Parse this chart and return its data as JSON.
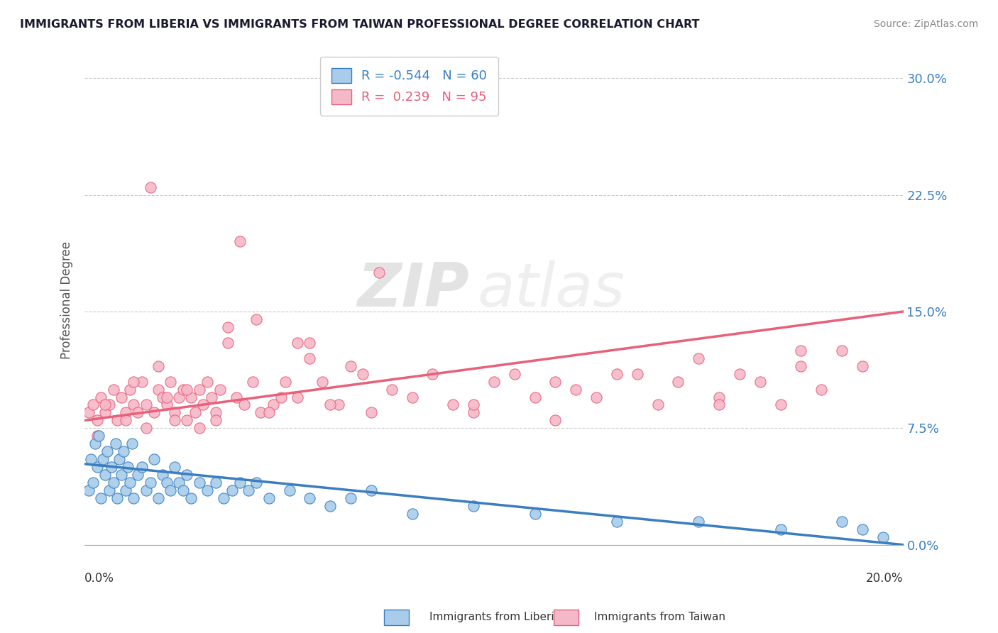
{
  "title": "IMMIGRANTS FROM LIBERIA VS IMMIGRANTS FROM TAIWAN PROFESSIONAL DEGREE CORRELATION CHART",
  "source": "Source: ZipAtlas.com",
  "ylabel": "Professional Degree",
  "yticks": [
    "0.0%",
    "7.5%",
    "15.0%",
    "22.5%",
    "30.0%"
  ],
  "ytick_vals": [
    0.0,
    7.5,
    15.0,
    22.5,
    30.0
  ],
  "xlim": [
    0.0,
    20.0
  ],
  "ylim": [
    0.0,
    31.5
  ],
  "legend_blue_r": "-0.544",
  "legend_blue_n": "60",
  "legend_pink_r": "0.239",
  "legend_pink_n": "95",
  "blue_color": "#A8CCEA",
  "pink_color": "#F5B8C8",
  "blue_line_color": "#3A7EC0",
  "pink_line_color": "#E8607A",
  "watermark_zip": "ZIP",
  "watermark_atlas": "atlas",
  "blue_line_x0": 0.0,
  "blue_line_y0": 5.2,
  "blue_line_x1": 20.0,
  "blue_line_y1": 0.0,
  "pink_line_x0": 0.0,
  "pink_line_y0": 8.0,
  "pink_line_x1": 20.0,
  "pink_line_y1": 15.0,
  "blue_scatter_x": [
    0.1,
    0.15,
    0.2,
    0.25,
    0.3,
    0.35,
    0.4,
    0.45,
    0.5,
    0.55,
    0.6,
    0.65,
    0.7,
    0.75,
    0.8,
    0.85,
    0.9,
    0.95,
    1.0,
    1.05,
    1.1,
    1.15,
    1.2,
    1.3,
    1.4,
    1.5,
    1.6,
    1.7,
    1.8,
    1.9,
    2.0,
    2.1,
    2.2,
    2.3,
    2.4,
    2.5,
    2.6,
    2.8,
    3.0,
    3.2,
    3.4,
    3.6,
    3.8,
    4.0,
    4.2,
    4.5,
    5.0,
    5.5,
    6.0,
    6.5,
    7.0,
    8.0,
    9.5,
    11.0,
    13.0,
    15.0,
    17.0,
    18.5,
    19.0,
    19.5
  ],
  "blue_scatter_y": [
    3.5,
    5.5,
    4.0,
    6.5,
    5.0,
    7.0,
    3.0,
    5.5,
    4.5,
    6.0,
    3.5,
    5.0,
    4.0,
    6.5,
    3.0,
    5.5,
    4.5,
    6.0,
    3.5,
    5.0,
    4.0,
    6.5,
    3.0,
    4.5,
    5.0,
    3.5,
    4.0,
    5.5,
    3.0,
    4.5,
    4.0,
    3.5,
    5.0,
    4.0,
    3.5,
    4.5,
    3.0,
    4.0,
    3.5,
    4.0,
    3.0,
    3.5,
    4.0,
    3.5,
    4.0,
    3.0,
    3.5,
    3.0,
    2.5,
    3.0,
    3.5,
    2.0,
    2.5,
    2.0,
    1.5,
    1.5,
    1.0,
    1.5,
    1.0,
    0.5
  ],
  "pink_scatter_x": [
    0.1,
    0.2,
    0.3,
    0.4,
    0.5,
    0.6,
    0.7,
    0.8,
    0.9,
    1.0,
    1.1,
    1.2,
    1.3,
    1.4,
    1.5,
    1.6,
    1.7,
    1.8,
    1.9,
    2.0,
    2.1,
    2.2,
    2.3,
    2.4,
    2.5,
    2.6,
    2.7,
    2.8,
    2.9,
    3.0,
    3.1,
    3.2,
    3.3,
    3.5,
    3.7,
    3.9,
    4.1,
    4.3,
    4.6,
    4.9,
    5.2,
    5.5,
    5.8,
    6.2,
    6.5,
    7.0,
    7.5,
    8.0,
    8.5,
    9.0,
    9.5,
    10.0,
    10.5,
    11.0,
    11.5,
    12.0,
    12.5,
    13.0,
    14.0,
    14.5,
    15.0,
    15.5,
    16.0,
    16.5,
    17.0,
    17.5,
    18.0,
    18.5,
    19.0,
    1.5,
    2.0,
    1.0,
    0.5,
    3.5,
    4.5,
    2.5,
    1.8,
    2.2,
    6.0,
    7.2,
    3.8,
    4.2,
    5.5,
    6.8,
    2.8,
    3.2,
    4.8,
    5.2,
    9.5,
    11.5,
    13.5,
    15.5,
    17.5,
    0.3,
    1.2
  ],
  "pink_scatter_y": [
    8.5,
    9.0,
    8.0,
    9.5,
    8.5,
    9.0,
    10.0,
    8.0,
    9.5,
    8.5,
    10.0,
    9.0,
    8.5,
    10.5,
    9.0,
    23.0,
    8.5,
    10.0,
    9.5,
    9.0,
    10.5,
    8.5,
    9.5,
    10.0,
    8.0,
    9.5,
    8.5,
    10.0,
    9.0,
    10.5,
    9.5,
    8.5,
    10.0,
    13.0,
    9.5,
    9.0,
    10.5,
    8.5,
    9.0,
    10.5,
    9.5,
    13.0,
    10.5,
    9.0,
    11.5,
    8.5,
    10.0,
    9.5,
    11.0,
    9.0,
    8.5,
    10.5,
    11.0,
    9.5,
    8.0,
    10.0,
    9.5,
    11.0,
    9.0,
    10.5,
    12.0,
    9.5,
    11.0,
    10.5,
    9.0,
    11.5,
    10.0,
    12.5,
    11.5,
    7.5,
    9.5,
    8.0,
    9.0,
    14.0,
    8.5,
    10.0,
    11.5,
    8.0,
    9.0,
    17.5,
    19.5,
    14.5,
    12.0,
    11.0,
    7.5,
    8.0,
    9.5,
    13.0,
    9.0,
    10.5,
    11.0,
    9.0,
    12.5,
    7.0,
    10.5
  ],
  "grid_color": "#CCCCCC",
  "grid_linestyle": "--",
  "grid_linewidth": 0.8
}
